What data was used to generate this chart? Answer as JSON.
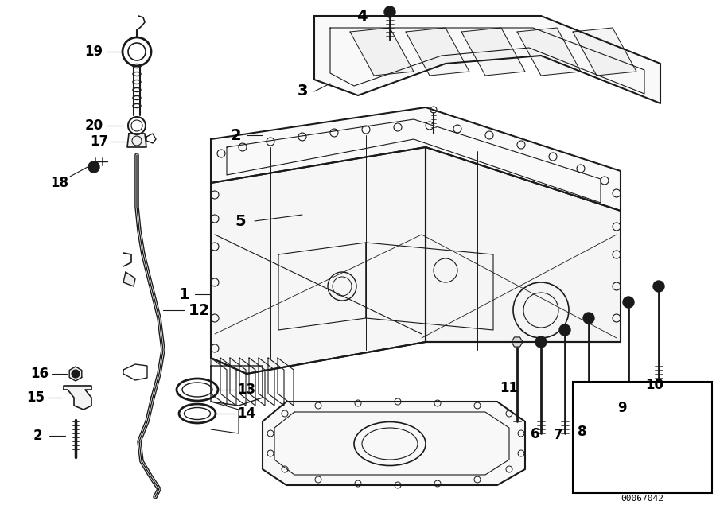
{
  "background_color": "#ffffff",
  "image_id": "00067042",
  "line_color": "#1a1a1a",
  "label_fontsize": 12,
  "border_color": "#000000"
}
